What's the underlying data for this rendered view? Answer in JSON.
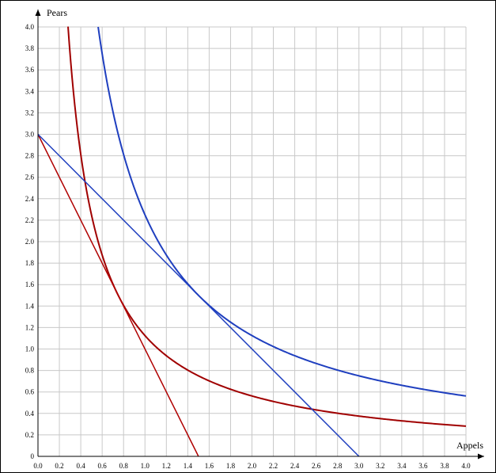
{
  "chart_data": {
    "type": "line",
    "title": "",
    "xlabel": "Appels",
    "ylabel": "Pears",
    "xlim": [
      0,
      4
    ],
    "ylim": [
      0,
      4
    ],
    "xticks": [
      "0.0",
      "0.2",
      "0.4",
      "0.6",
      "0.8",
      "1.0",
      "1.2",
      "1.4",
      "1.6",
      "1.8",
      "2.0",
      "2.2",
      "2.4",
      "2.6",
      "2.8",
      "3.0",
      "3.2",
      "3.4",
      "3.6",
      "3.8",
      "4.0"
    ],
    "yticks": [
      "0",
      "0.2",
      "0.4",
      "0.6",
      "0.8",
      "1.0",
      "1.2",
      "1.4",
      "1.6",
      "1.8",
      "2.0",
      "2.2",
      "2.4",
      "2.6",
      "2.8",
      "3.0",
      "3.2",
      "3.4",
      "3.6",
      "3.8",
      "4.0"
    ],
    "grid": true,
    "series": [
      {
        "kind": "curve",
        "formula": "y = k/x",
        "k": 1.125,
        "color": "#a00000",
        "x_start": 0.281,
        "x_end": 4.0
      },
      {
        "kind": "line",
        "points": [
          [
            0,
            3
          ],
          [
            1.5,
            0
          ]
        ],
        "color": "#b00000"
      },
      {
        "kind": "curve",
        "formula": "y = k/x",
        "k": 2.25,
        "color": "#1f3fbf",
        "x_start": 0.5625,
        "x_end": 4.0
      },
      {
        "kind": "line",
        "points": [
          [
            0,
            3
          ],
          [
            3.0,
            0
          ]
        ],
        "color": "#1f3fbf"
      }
    ]
  }
}
